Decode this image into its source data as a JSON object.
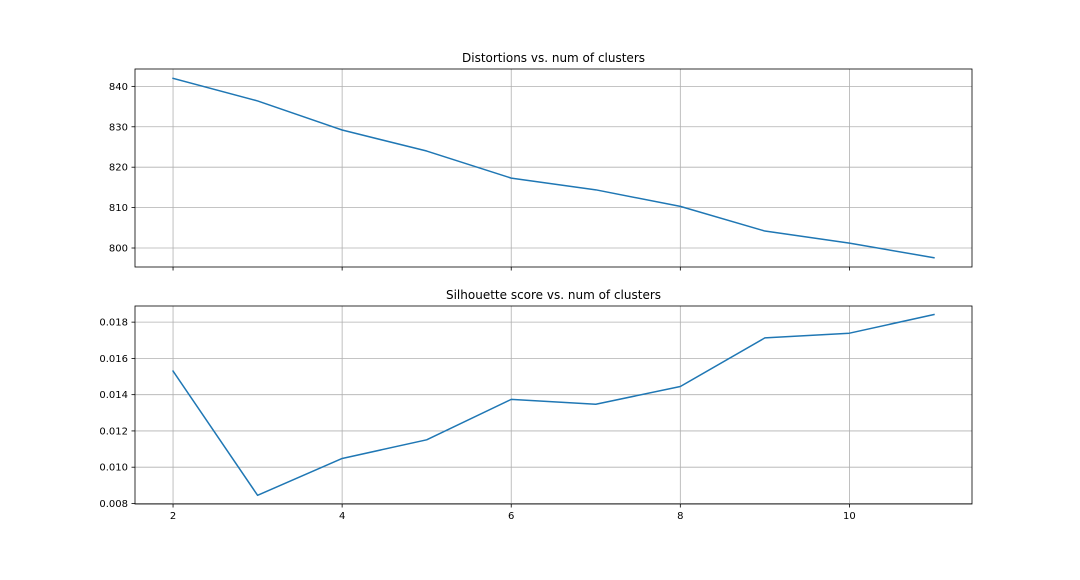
{
  "colors": {
    "line": "#1f77b4",
    "grid": "#b0b0b0",
    "axes": "#000000",
    "background": "#ffffff"
  },
  "chart_data": [
    {
      "type": "line",
      "title": "Distortions vs. num of clusters",
      "xlabel": "",
      "ylabel": "",
      "x": [
        2,
        3,
        4,
        5,
        6,
        7,
        8,
        9,
        10,
        11
      ],
      "series": [
        {
          "values": [
            842.0,
            836.4,
            829.2,
            824.0,
            817.3,
            814.4,
            810.3,
            804.2,
            801.2,
            797.6
          ]
        }
      ],
      "xlim": [
        1.55,
        11.45
      ],
      "ylim": [
        795.3,
        844.3
      ],
      "xticks": [
        2,
        4,
        6,
        8,
        10
      ],
      "yticks": [
        800,
        810,
        820,
        830,
        840
      ],
      "ytick_labels": [
        "800",
        "810",
        "820",
        "830",
        "840"
      ],
      "xtick_labels": [],
      "grid": true,
      "legend": "none"
    },
    {
      "type": "line",
      "title": "Silhouette score vs. num of clusters",
      "xlabel": "",
      "ylabel": "",
      "x": [
        2,
        3,
        4,
        5,
        6,
        7,
        8,
        9,
        10,
        11
      ],
      "series": [
        {
          "values": [
            0.0153,
            0.00845,
            0.01048,
            0.01151,
            0.01374,
            0.01347,
            0.01445,
            0.01713,
            0.01739,
            0.01842
          ]
        }
      ],
      "xlim": [
        1.55,
        11.45
      ],
      "ylim": [
        0.00797,
        0.01889
      ],
      "xticks": [
        2,
        4,
        6,
        8,
        10
      ],
      "yticks": [
        0.008,
        0.01,
        0.012,
        0.014,
        0.016,
        0.018
      ],
      "ytick_labels": [
        "0.008",
        "0.010",
        "0.012",
        "0.014",
        "0.016",
        "0.018"
      ],
      "xtick_labels": [
        "2",
        "4",
        "6",
        "8",
        "10"
      ],
      "grid": true,
      "legend": "none"
    }
  ]
}
